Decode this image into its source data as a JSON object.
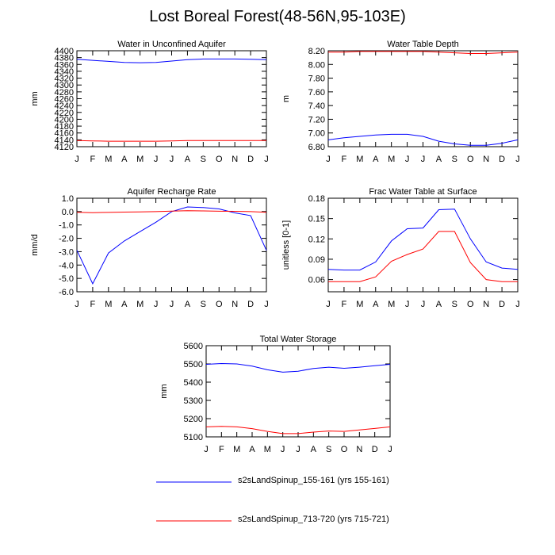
{
  "figure_title": "Lost Boreal Forest(48-56N,95-103E)",
  "colors": {
    "series1": "#0000ff",
    "series2": "#ff0000",
    "axis": "#000000"
  },
  "legend": [
    {
      "label": "s2sLandSpinup_155-161 (yrs 155-161)",
      "color": "#0000ff"
    },
    {
      "label": "s2sLandSpinup_713-720 (yrs 715-721)",
      "color": "#ff0000"
    }
  ],
  "chart_data": [
    {
      "type": "line",
      "title": "Water in Unconfined Aquifer",
      "xlabel": "",
      "ylabel": "mm",
      "categories": [
        "J",
        "F",
        "M",
        "A",
        "M",
        "J",
        "J",
        "A",
        "S",
        "O",
        "N",
        "D",
        "J"
      ],
      "ylim": [
        4120,
        4400
      ],
      "yticks": [
        "4120",
        "4140",
        "4160",
        "4180",
        "4200",
        "4220",
        "4240",
        "4260",
        "4280",
        "4300",
        "4320",
        "4340",
        "4360",
        "4380",
        "4400"
      ],
      "series": [
        {
          "name": "s2sLandSpinup_155-161 (yrs 155-161)",
          "values": [
            4375,
            4372,
            4369,
            4366,
            4365,
            4366,
            4370,
            4374,
            4376,
            4376,
            4376,
            4375,
            4374
          ]
        },
        {
          "name": "s2sLandSpinup_713-720 (yrs 715-721)",
          "values": [
            4138,
            4137,
            4136,
            4136,
            4136,
            4136,
            4137,
            4138,
            4138,
            4138,
            4138,
            4138,
            4138
          ]
        }
      ]
    },
    {
      "type": "line",
      "title": "Water Table Depth",
      "xlabel": "",
      "ylabel": "m",
      "categories": [
        "J",
        "F",
        "M",
        "A",
        "M",
        "J",
        "J",
        "A",
        "S",
        "O",
        "N",
        "D",
        "J"
      ],
      "ylim": [
        6.8,
        8.2
      ],
      "yticks": [
        "6.80",
        "7.00",
        "7.20",
        "7.40",
        "7.60",
        "7.80",
        "8.00",
        "8.20"
      ],
      "series": [
        {
          "name": "s2sLandSpinup_155-161 (yrs 155-161)",
          "values": [
            6.9,
            6.93,
            6.95,
            6.97,
            6.98,
            6.98,
            6.95,
            6.88,
            6.84,
            6.82,
            6.82,
            6.85,
            6.9
          ]
        },
        {
          "name": "s2sLandSpinup_713-720 (yrs 715-721)",
          "values": [
            8.18,
            8.18,
            8.19,
            8.19,
            8.19,
            8.19,
            8.19,
            8.18,
            8.17,
            8.16,
            8.16,
            8.17,
            8.18
          ]
        }
      ]
    },
    {
      "type": "line",
      "title": "Aquifer Recharge Rate",
      "xlabel": "",
      "ylabel": "mm/d",
      "categories": [
        "J",
        "F",
        "M",
        "A",
        "M",
        "J",
        "J",
        "A",
        "S",
        "O",
        "N",
        "D",
        "J"
      ],
      "ylim": [
        -6.0,
        1.0
      ],
      "yticks": [
        "-6.0",
        "-5.0",
        "-4.0",
        "-3.0",
        "-2.0",
        "-1.0",
        "0.0",
        "1.0"
      ],
      "series": [
        {
          "name": "s2sLandSpinup_155-161 (yrs 155-161)",
          "values": [
            -2.9,
            -5.4,
            -3.1,
            -2.2,
            -1.5,
            -0.8,
            0.0,
            0.35,
            0.3,
            0.2,
            -0.1,
            -0.3,
            -2.9
          ]
        },
        {
          "name": "s2sLandSpinup_713-720 (yrs 715-721)",
          "values": [
            -0.05,
            -0.08,
            -0.06,
            -0.04,
            -0.02,
            0.0,
            0.04,
            0.06,
            0.05,
            0.03,
            0.02,
            0.0,
            -0.05
          ]
        }
      ]
    },
    {
      "type": "line",
      "title": "Frac Water Table at Surface",
      "xlabel": "",
      "ylabel": "unitless [0-1]",
      "categories": [
        "J",
        "F",
        "M",
        "A",
        "M",
        "J",
        "J",
        "A",
        "S",
        "O",
        "N",
        "D",
        "J"
      ],
      "ylim": [
        0.042,
        0.18
      ],
      "yticks": [
        "0.06",
        "0.09",
        "0.12",
        "0.15",
        "0.18"
      ],
      "series": [
        {
          "name": "s2sLandSpinup_155-161 (yrs 155-161)",
          "values": [
            0.075,
            0.074,
            0.074,
            0.086,
            0.117,
            0.135,
            0.136,
            0.163,
            0.164,
            0.12,
            0.086,
            0.077,
            0.075
          ]
        },
        {
          "name": "s2sLandSpinup_713-720 (yrs 715-721)",
          "values": [
            0.057,
            0.057,
            0.057,
            0.064,
            0.087,
            0.097,
            0.105,
            0.131,
            0.131,
            0.085,
            0.06,
            0.057,
            0.057
          ]
        }
      ]
    },
    {
      "type": "line",
      "title": "Total Water Storage",
      "xlabel": "",
      "ylabel": "mm",
      "categories": [
        "J",
        "F",
        "M",
        "A",
        "M",
        "J",
        "J",
        "A",
        "S",
        "O",
        "N",
        "D",
        "J"
      ],
      "ylim": [
        5100,
        5600
      ],
      "yticks": [
        "5100",
        "5200",
        "5300",
        "5400",
        "5500",
        "5600"
      ],
      "series": [
        {
          "name": "s2sLandSpinup_155-161 (yrs 155-161)",
          "values": [
            5498,
            5502,
            5500,
            5488,
            5468,
            5455,
            5460,
            5475,
            5482,
            5476,
            5482,
            5490,
            5498
          ]
        },
        {
          "name": "s2sLandSpinup_713-720 (yrs 715-721)",
          "values": [
            5155,
            5158,
            5155,
            5145,
            5130,
            5118,
            5118,
            5126,
            5132,
            5130,
            5138,
            5146,
            5155
          ]
        }
      ]
    }
  ]
}
